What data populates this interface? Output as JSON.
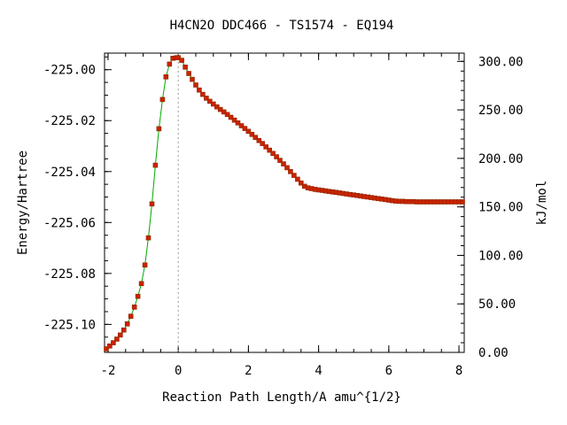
{
  "chart_data": {
    "type": "scatter",
    "title": "H4CN2O   DDC466 - TS1574 - EQ194",
    "xlabel": "Reaction Path Length/A amu^{1/2}",
    "ylabel": "Energy/Hartree",
    "y2label": "kJ/mol",
    "xlim": [
      -2.1,
      8.15
    ],
    "ylim": [
      -225.111,
      -224.9935
    ],
    "y2lim": [
      0,
      308.5
    ],
    "x_ticks": [
      "-2",
      "0",
      "2",
      "4",
      "6",
      "8"
    ],
    "y_ticks": [
      "-225.00",
      "-225.02",
      "-225.04",
      "-225.06",
      "-225.08",
      "-225.10"
    ],
    "y2_ticks": [
      "300.00",
      "250.00",
      "200.00",
      "150.00",
      "100.00",
      "50.00",
      "0.00"
    ],
    "ts_marker_x": 0,
    "grid": false,
    "colors": {
      "line": "#00aa00",
      "marker": "#cc2200",
      "marker_edge": "#8a2a00",
      "ts_line": "#999999"
    },
    "series": [
      {
        "x": [
          -2.05,
          -1.95,
          -1.85,
          -1.75,
          -1.65,
          -1.55,
          -1.45,
          -1.35,
          -1.25,
          -1.15,
          -1.05,
          -0.95,
          -0.85,
          -0.75,
          -0.65,
          -0.55,
          -0.45,
          -0.35,
          -0.25,
          -0.15,
          -0.05,
          0.0,
          0.1,
          0.2,
          0.3,
          0.4,
          0.5,
          0.6,
          0.7,
          0.8,
          0.9,
          1.0,
          1.1,
          1.2,
          1.3,
          1.4,
          1.5,
          1.6,
          1.7,
          1.8,
          1.9,
          2.0,
          2.1,
          2.2,
          2.3,
          2.4,
          2.5,
          2.6,
          2.7,
          2.8,
          2.9,
          3.0,
          3.1,
          3.2,
          3.3,
          3.4,
          3.5,
          3.6,
          3.7,
          3.8,
          3.9,
          4.0,
          4.1,
          4.2,
          4.3,
          4.4,
          4.5,
          4.6,
          4.7,
          4.8,
          4.9,
          5.0,
          5.1,
          5.2,
          5.3,
          5.4,
          5.5,
          5.6,
          5.7,
          5.8,
          5.9,
          6.0,
          6.1,
          6.2,
          6.3,
          6.4,
          6.5,
          6.6,
          6.7,
          6.8,
          6.9,
          7.0,
          7.1,
          7.2,
          7.3,
          7.4,
          7.5,
          7.6,
          7.7,
          7.8,
          7.9,
          8.0,
          8.1
        ],
        "y": [
          -225.1096,
          -225.1085,
          -225.1072,
          -225.1058,
          -225.1042,
          -225.1022,
          -225.0998,
          -225.0968,
          -225.0932,
          -225.089,
          -225.084,
          -225.0767,
          -225.066,
          -225.0527,
          -225.0375,
          -225.0232,
          -225.0117,
          -225.0028,
          -224.9978,
          -224.9955,
          -224.9953,
          -224.9953,
          -224.9963,
          -224.999,
          -225.0015,
          -225.0038,
          -225.006,
          -225.008,
          -225.0097,
          -225.0112,
          -225.0124,
          -225.0135,
          -225.0146,
          -225.0156,
          -225.0166,
          -225.0176,
          -225.0187,
          -225.0198,
          -225.0209,
          -225.022,
          -225.0231,
          -225.0242,
          -225.0254,
          -225.0266,
          -225.0278,
          -225.029,
          -225.0303,
          -225.0316,
          -225.0329,
          -225.0342,
          -225.0356,
          -225.037,
          -225.0385,
          -225.04,
          -225.0415,
          -225.043,
          -225.0445,
          -225.0458,
          -225.0464,
          -225.0467,
          -225.047,
          -225.0472,
          -225.0474,
          -225.0476,
          -225.0478,
          -225.048,
          -225.0482,
          -225.0484,
          -225.0486,
          -225.0488,
          -225.049,
          -225.0492,
          -225.0494,
          -225.0496,
          -225.0498,
          -225.05,
          -225.0502,
          -225.0504,
          -225.0506,
          -225.0508,
          -225.051,
          -225.0512,
          -225.0514,
          -225.0516,
          -225.0517,
          -225.0517,
          -225.0518,
          -225.0518,
          -225.0518,
          -225.0519,
          -225.0519,
          -225.0519,
          -225.0519,
          -225.0519,
          -225.0519,
          -225.0519,
          -225.0519,
          -225.0519,
          -225.0519,
          -225.0519,
          -225.0519,
          -225.0519,
          -225.0519
        ]
      }
    ]
  }
}
